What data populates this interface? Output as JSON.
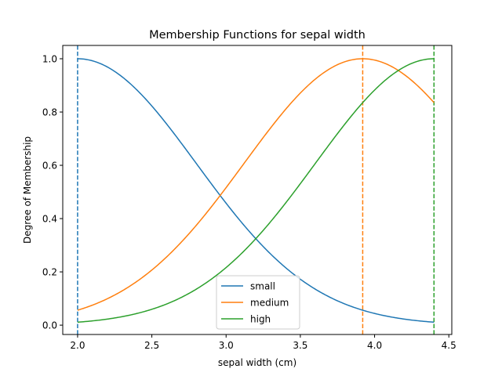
{
  "chart_data": {
    "type": "line",
    "title": "Membership Functions for sepal width",
    "xlabel": "sepal width (cm)",
    "ylabel": "Degree of Membership",
    "xlim": [
      1.9,
      4.52
    ],
    "ylim": [
      -0.035,
      1.05
    ],
    "xticks": [
      2.0,
      2.5,
      3.0,
      3.5,
      4.0,
      4.5
    ],
    "xtick_labels": [
      "2.0",
      "2.5",
      "3.0",
      "3.5",
      "4.0",
      "4.5"
    ],
    "yticks": [
      0.0,
      0.2,
      0.4,
      0.6,
      0.8,
      1.0
    ],
    "ytick_labels": [
      "0.0",
      "0.2",
      "0.4",
      "0.6",
      "0.8",
      "1.0"
    ],
    "grid": false,
    "legend_position": "lower-center",
    "series": [
      {
        "name": "small",
        "color": "#1f77b4",
        "mean": 2.0,
        "sigma": 0.8,
        "x_range": [
          2.0,
          4.4
        ],
        "x": [
          2.0,
          2.2,
          2.4,
          2.6,
          2.8,
          3.0,
          3.2,
          3.4,
          3.6,
          3.8,
          4.0,
          4.2,
          4.4
        ],
        "y": [
          1.0,
          0.969,
          0.882,
          0.755,
          0.607,
          0.458,
          0.325,
          0.216,
          0.135,
          0.08,
          0.044,
          0.023,
          0.011
        ]
      },
      {
        "name": "medium",
        "color": "#ff7f0e",
        "mean": 3.92,
        "sigma": 0.8,
        "x_range": [
          2.0,
          4.4
        ],
        "x": [
          2.0,
          2.2,
          2.4,
          2.6,
          2.8,
          3.0,
          3.2,
          3.4,
          3.6,
          3.8,
          3.92,
          4.0,
          4.2,
          4.4
        ],
        "y": [
          0.056,
          0.099,
          0.165,
          0.257,
          0.375,
          0.516,
          0.667,
          0.81,
          0.923,
          0.989,
          1.0,
          0.995,
          0.941,
          0.835
        ]
      },
      {
        "name": "high",
        "color": "#2ca02c",
        "mean": 4.4,
        "sigma": 0.8,
        "x_range": [
          2.0,
          4.4
        ],
        "x": [
          2.0,
          2.2,
          2.4,
          2.6,
          2.8,
          3.0,
          3.2,
          3.4,
          3.6,
          3.8,
          4.0,
          4.2,
          4.4
        ],
        "y": [
          0.011,
          0.023,
          0.044,
          0.08,
          0.135,
          0.216,
          0.325,
          0.458,
          0.607,
          0.755,
          0.882,
          0.969,
          1.0
        ]
      }
    ],
    "vlines": [
      {
        "x": 2.0,
        "color": "#1f77b4",
        "style": "dashed"
      },
      {
        "x": 3.92,
        "color": "#ff7f0e",
        "style": "dashed"
      },
      {
        "x": 4.4,
        "color": "#2ca02c",
        "style": "dashed"
      }
    ]
  }
}
